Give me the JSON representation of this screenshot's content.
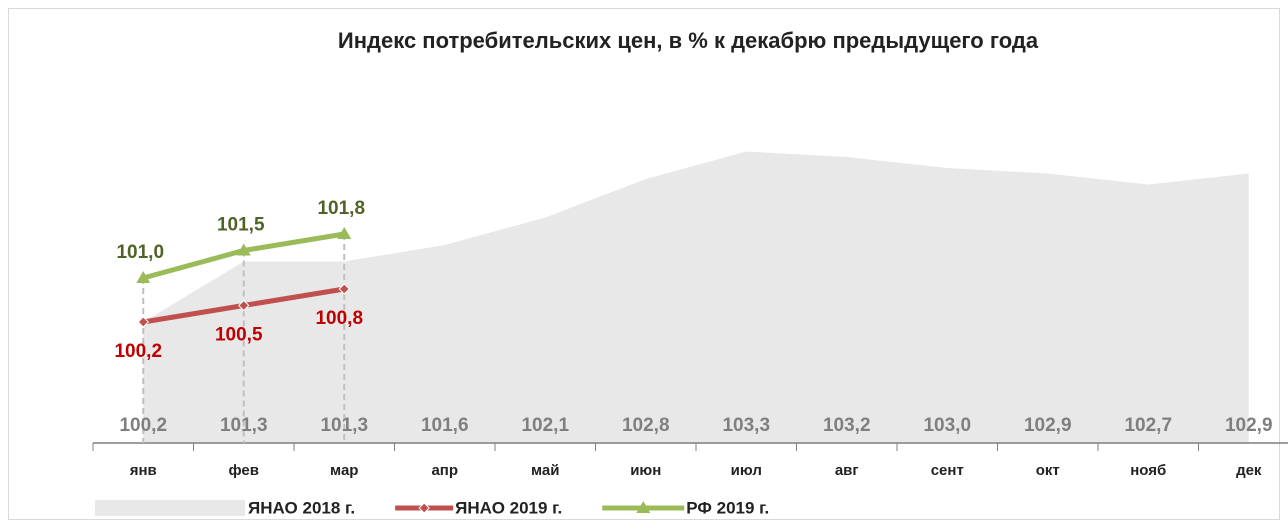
{
  "chart_data": {
    "type": "line",
    "title": "Индекс потребительских цен, в % к декабрю предыдущего года",
    "categories": [
      "янв",
      "фев",
      "мар",
      "апр",
      "май",
      "июн",
      "июл",
      "авг",
      "сент",
      "окт",
      "нояб",
      "дек"
    ],
    "ylim": [
      98,
      104.2
    ],
    "series": [
      {
        "name": "ЯНАО 2018 г.",
        "kind": "area",
        "color": "#e8e8e8",
        "label_color": "#7f7f7f",
        "values": [
          100.2,
          101.3,
          101.3,
          101.6,
          102.1,
          102.8,
          103.3,
          103.2,
          103.0,
          102.9,
          102.7,
          102.9
        ],
        "value_labels": [
          "100,2",
          "101,3",
          "101,3",
          "101,6",
          "102,1",
          "102,8",
          "103,3",
          "103,2",
          "103,0",
          "102,9",
          "102,7",
          "102,9"
        ]
      },
      {
        "name": "ЯНАО 2019 г.",
        "kind": "line",
        "color": "#c0504d",
        "label_color": "#c00000",
        "marker": "diamond",
        "values": [
          100.2,
          100.5,
          100.8,
          null,
          null,
          null,
          null,
          null,
          null,
          null,
          null,
          null
        ],
        "value_labels": [
          "100,2",
          "100,5",
          "100,8",
          null,
          null,
          null,
          null,
          null,
          null,
          null,
          null,
          null
        ]
      },
      {
        "name": "РФ 2019 г.",
        "kind": "line",
        "color": "#9bbb59",
        "label_color": "#4f6228",
        "marker": "triangle",
        "values": [
          101.0,
          101.5,
          101.8,
          null,
          null,
          null,
          null,
          null,
          null,
          null,
          null,
          null
        ],
        "value_labels": [
          "101,0",
          "101,5",
          "101,8",
          null,
          null,
          null,
          null,
          null,
          null,
          null,
          null,
          null
        ]
      }
    ]
  }
}
